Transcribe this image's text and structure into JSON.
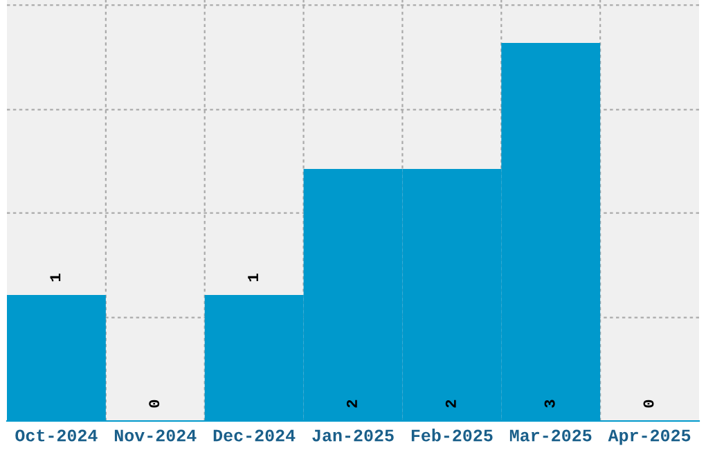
{
  "chart_data": {
    "type": "bar",
    "categories": [
      "Oct-2024",
      "Nov-2024",
      "Dec-2024",
      "Jan-2025",
      "Feb-2025",
      "Mar-2025",
      "Apr-2025"
    ],
    "values": [
      1,
      0,
      1,
      2,
      2,
      3,
      0
    ],
    "color": "#0099cc",
    "ylim": [
      0,
      3.34
    ],
    "yticks": [
      {
        "value": 0,
        "label": null
      },
      {
        "value": 0.82,
        "label": null
      },
      {
        "value": 1.65,
        "label": null
      },
      {
        "value": 2.47,
        "label": null
      },
      {
        "value": 3.3,
        "label": null
      }
    ],
    "tick_labels": "x",
    "grid": true,
    "data_labels": true
  }
}
